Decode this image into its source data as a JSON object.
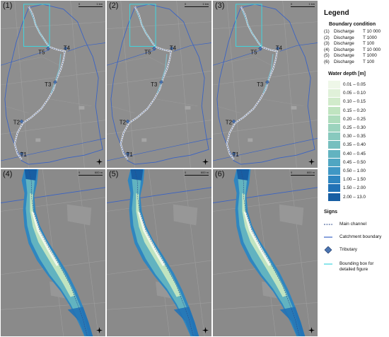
{
  "panels": [
    {
      "label": "(1)",
      "type": "overview"
    },
    {
      "label": "(2)",
      "type": "overview"
    },
    {
      "label": "(3)",
      "type": "overview"
    },
    {
      "label": "(4)",
      "type": "detail"
    },
    {
      "label": "(5)",
      "type": "detail"
    },
    {
      "label": "(6)",
      "type": "detail"
    }
  ],
  "tributary_labels": [
    "T5",
    "T4",
    "T3",
    "T2",
    "T1"
  ],
  "scale_bar_top": {
    "zero": "0",
    "distance": "1 km"
  },
  "scale_bar_bottom": {
    "zero": "0",
    "distance": "600 m"
  },
  "legend": {
    "title": "Legend",
    "boundary_heading": "Boundary condition",
    "boundary_conditions": [
      {
        "id": "(1)",
        "type": "Discharge",
        "period": "T 10 000"
      },
      {
        "id": "(2)",
        "type": "Discharge",
        "period": "T 1000"
      },
      {
        "id": "(3)",
        "type": "Discharge",
        "period": "T 100"
      },
      {
        "id": "(4)",
        "type": "Discharge",
        "period": "T 10 000"
      },
      {
        "id": "(5)",
        "type": "Discharge",
        "period": "T 1000"
      },
      {
        "id": "(6)",
        "type": "Discharge",
        "period": "T 100"
      }
    ],
    "depth_heading": "Water depth [m]",
    "depth_classes": [
      {
        "range": "0.01 – 0.05",
        "color": "#eef7e8"
      },
      {
        "range": "0.05 – 0.10",
        "color": "#e0f1d9"
      },
      {
        "range": "0.10 – 0.15",
        "color": "#d1ebcb"
      },
      {
        "range": "0.15 – 0.20",
        "color": "#c0e4c0"
      },
      {
        "range": "0.20 – 0.25",
        "color": "#aedcbc"
      },
      {
        "range": "0.25 – 0.30",
        "color": "#9bd3bd"
      },
      {
        "range": "0.30 – 0.35",
        "color": "#88c9be"
      },
      {
        "range": "0.35 – 0.40",
        "color": "#76bfbf"
      },
      {
        "range": "0.40 – 0.45",
        "color": "#62b3c0"
      },
      {
        "range": "0.45 – 0.50",
        "color": "#50a6c2"
      },
      {
        "range": "0.50 – 1.00",
        "color": "#3f97c4"
      },
      {
        "range": "1.00 – 1.50",
        "color": "#2f86c0"
      },
      {
        "range": "1.50 – 2.00",
        "color": "#2172b6"
      },
      {
        "range": "2.00 – 13.0",
        "color": "#175ea3"
      }
    ],
    "signs_heading": "Signs",
    "signs": [
      {
        "label": "Main channel",
        "icon": "dashed-line-icon",
        "color": "#2b4a8a"
      },
      {
        "label": "Catchment boundary",
        "icon": "line-icon",
        "color": "#3a63c4"
      },
      {
        "label": "Tributary",
        "icon": "diamond-icon",
        "color": "#4a74b0"
      },
      {
        "label": "Bounding box for detailed figure",
        "icon": "line-icon",
        "color": "#3fd6e0"
      }
    ]
  }
}
